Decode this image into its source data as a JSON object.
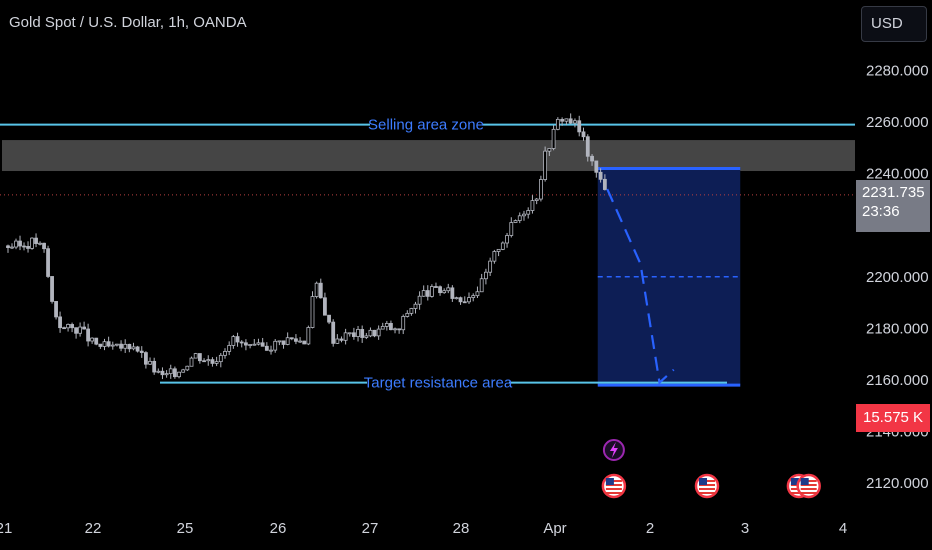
{
  "header": {
    "title": "Gold Spot / U.S. Dollar, 1h, OANDA",
    "currency": "USD"
  },
  "price_badge": {
    "price": "2231.735",
    "countdown": "23:36"
  },
  "volume_badge": {
    "value": "15.575 K"
  },
  "colors": {
    "background": "#000000",
    "text": "#d1d4dc",
    "candle": "#b2b5be",
    "zone_line": "#58c4e8",
    "annotation_text": "#3d7cff",
    "target_box": "#0d1e55",
    "target_border": "#2962ff",
    "price_badge": "#787b86",
    "volume_badge": "#f23645",
    "event_icon": "#9c27b0"
  },
  "chart_data": {
    "type": "candlestick",
    "title": "Gold Spot / U.S. Dollar, 1h, OANDA",
    "xlabel": "",
    "ylabel": "",
    "ylim": [
      2107,
      2300
    ],
    "y_ticks": [
      2120,
      2140,
      2160,
      2180,
      2200,
      2220,
      2240,
      2260,
      2280
    ],
    "y_tick_labels": [
      "2120.000",
      "2140.000",
      "2160.000",
      "2180.000",
      "2200.000",
      "2220.000",
      "2240.000",
      "2260.000",
      "2280.000"
    ],
    "x_ticks": [
      {
        "label": "21",
        "x": 0
      },
      {
        "label": "22",
        "x": 1
      },
      {
        "label": "25",
        "x": 2
      },
      {
        "label": "26",
        "x": 3
      },
      {
        "label": "27",
        "x": 4
      },
      {
        "label": "28",
        "x": 5
      },
      {
        "label": "Apr",
        "x": 6
      },
      {
        "label": "2",
        "x": 7
      },
      {
        "label": "3",
        "x": 8
      },
      {
        "label": "4",
        "x": 9
      }
    ],
    "price_path": [
      [
        0.0,
        2212
      ],
      [
        0.2,
        2212
      ],
      [
        0.35,
        2214
      ],
      [
        0.45,
        2210
      ],
      [
        0.55,
        2188
      ],
      [
        0.65,
        2180
      ],
      [
        0.85,
        2180
      ],
      [
        1.0,
        2174
      ],
      [
        1.25,
        2172
      ],
      [
        1.45,
        2174
      ],
      [
        1.55,
        2168
      ],
      [
        1.75,
        2161
      ],
      [
        1.95,
        2164
      ],
      [
        2.1,
        2170
      ],
      [
        2.3,
        2167
      ],
      [
        2.5,
        2176
      ],
      [
        2.7,
        2172
      ],
      [
        2.9,
        2173
      ],
      [
        3.1,
        2176
      ],
      [
        3.3,
        2175
      ],
      [
        3.4,
        2198
      ],
      [
        3.5,
        2188
      ],
      [
        3.6,
        2176
      ],
      [
        3.8,
        2178
      ],
      [
        4.0,
        2178
      ],
      [
        4.2,
        2181
      ],
      [
        4.3,
        2178
      ],
      [
        4.4,
        2186
      ],
      [
        4.6,
        2194
      ],
      [
        4.8,
        2195
      ],
      [
        5.0,
        2191
      ],
      [
        5.2,
        2196
      ],
      [
        5.4,
        2212
      ],
      [
        5.6,
        2223
      ],
      [
        5.8,
        2231
      ],
      [
        5.9,
        2248
      ],
      [
        6.05,
        2262
      ],
      [
        6.2,
        2260
      ],
      [
        6.3,
        2253
      ],
      [
        6.4,
        2242
      ],
      [
        6.55,
        2234
      ]
    ],
    "current_price": 2231.735,
    "annotations": [
      {
        "label": "Selling area zone",
        "y": 2259
      },
      {
        "label": "Target resistance area",
        "y": 2159
      }
    ],
    "zones": [
      {
        "kind": "gray-band",
        "y_from": 2241,
        "y_to": 2253
      },
      {
        "kind": "target-box",
        "x_from": 6.45,
        "x_to": 7.95,
        "y_from": 2158,
        "y_to": 2242,
        "mid": 2200
      }
    ],
    "projection": [
      [
        6.55,
        2234
      ],
      [
        6.9,
        2205
      ],
      [
        7.1,
        2159
      ],
      [
        7.25,
        2164
      ]
    ],
    "event_markers": [
      {
        "kind": "lightning",
        "x": 6.62
      },
      {
        "kind": "us-flag",
        "x": 6.62
      },
      {
        "kind": "us-flag",
        "x": 7.6
      },
      {
        "kind": "us-flag",
        "x": 8.55
      },
      {
        "kind": "us-flag",
        "x": 8.65
      }
    ]
  }
}
